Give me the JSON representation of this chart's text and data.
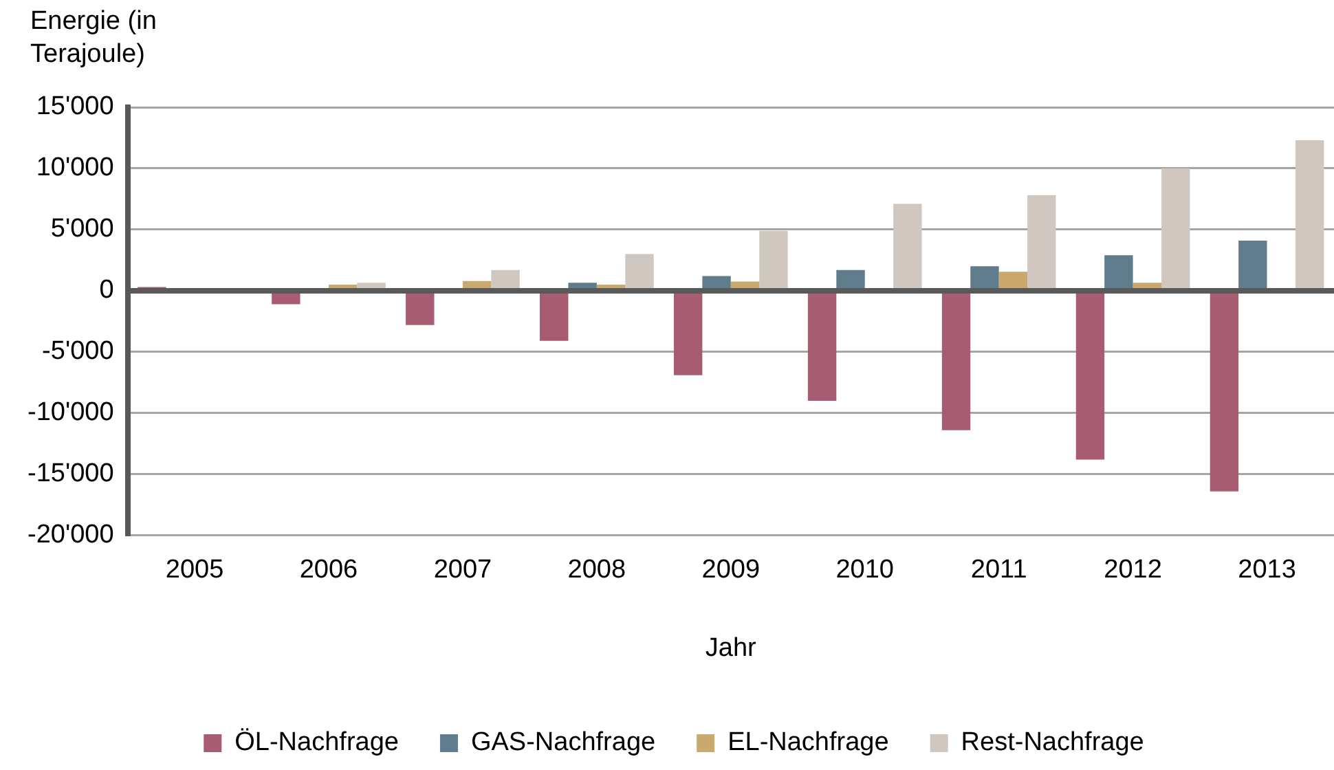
{
  "chart_data": {
    "type": "bar",
    "ylabel": "Energie (in Terajoule)",
    "xlabel": "Jahr",
    "categories": [
      "2005",
      "2006",
      "2007",
      "2008",
      "2009",
      "2010",
      "2011",
      "2012",
      "2013"
    ],
    "series": [
      {
        "name": "ÖL-Nachfrage",
        "color": "#a85c72",
        "values": [
          300,
          -1100,
          -2800,
          -4100,
          -6900,
          -9000,
          -11400,
          -13800,
          -16400
        ]
      },
      {
        "name": "GAS-Nachfrage",
        "color": "#607d8e",
        "values": [
          0,
          0,
          0,
          650,
          1200,
          1700,
          2000,
          2900,
          4100
        ]
      },
      {
        "name": "EL-Nachfrage",
        "color": "#c9a96e",
        "values": [
          0,
          500,
          800,
          500,
          750,
          0,
          1550,
          650,
          0
        ]
      },
      {
        "name": "Rest-Nachfrage",
        "color": "#d0c7c0",
        "values": [
          0,
          650,
          1700,
          3000,
          4900,
          7100,
          7800,
          10000,
          12300
        ]
      }
    ],
    "ylim": [
      -20000,
      15000
    ],
    "yticks": [
      {
        "value": -20000,
        "label": "-20'000"
      },
      {
        "value": -15000,
        "label": "-15'000"
      },
      {
        "value": -10000,
        "label": "-10'000"
      },
      {
        "value": -5000,
        "label": "-5'000"
      },
      {
        "value": 0,
        "label": "0"
      },
      {
        "value": 5000,
        "label": "5'000"
      },
      {
        "value": 10000,
        "label": "10'000"
      },
      {
        "value": 15000,
        "label": "15'000"
      }
    ],
    "grid": "y",
    "legend": "bottom"
  }
}
